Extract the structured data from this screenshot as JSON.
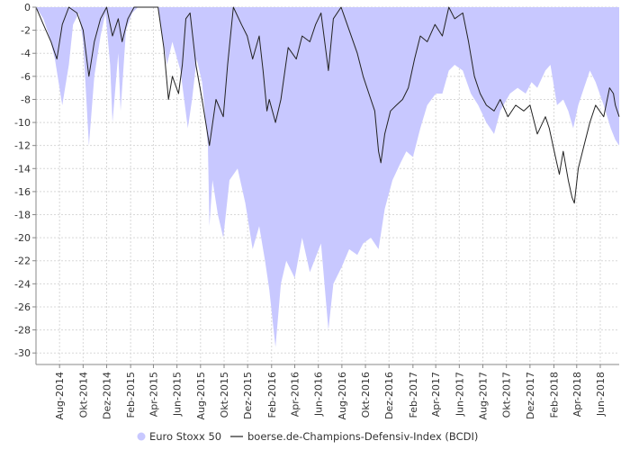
{
  "chart_data": {
    "type": "area",
    "title": "",
    "xlabel": "",
    "ylabel": "",
    "ylim": [
      -31,
      0
    ],
    "y_ticks": [
      0,
      -2,
      -4,
      -6,
      -8,
      -10,
      -12,
      -14,
      -16,
      -18,
      -20,
      -22,
      -24,
      -26,
      -28,
      -30
    ],
    "x_range": [
      "2014-06-01",
      "2018-07-20"
    ],
    "x_ticks": [
      {
        "date": "2014-08-01",
        "label": "Aug-2014"
      },
      {
        "date": "2014-10-01",
        "label": "Okt-2014"
      },
      {
        "date": "2014-12-01",
        "label": "Dez-2014"
      },
      {
        "date": "2015-02-01",
        "label": "Feb-2015"
      },
      {
        "date": "2015-04-01",
        "label": "Apr-2015"
      },
      {
        "date": "2015-06-01",
        "label": "Jun-2015"
      },
      {
        "date": "2015-08-01",
        "label": "Aug-2015"
      },
      {
        "date": "2015-10-01",
        "label": "Okt-2015"
      },
      {
        "date": "2015-12-01",
        "label": "Dez-2015"
      },
      {
        "date": "2016-02-01",
        "label": "Feb-2016"
      },
      {
        "date": "2016-04-01",
        "label": "Apr-2016"
      },
      {
        "date": "2016-06-01",
        "label": "Jun-2016"
      },
      {
        "date": "2016-08-01",
        "label": "Aug-2016"
      },
      {
        "date": "2016-10-01",
        "label": "Okt-2016"
      },
      {
        "date": "2016-12-01",
        "label": "Dez-2016"
      },
      {
        "date": "2017-02-01",
        "label": "Feb-2017"
      },
      {
        "date": "2017-04-01",
        "label": "Apr-2017"
      },
      {
        "date": "2017-06-01",
        "label": "Jun-2017"
      },
      {
        "date": "2017-08-01",
        "label": "Aug-2017"
      },
      {
        "date": "2017-10-01",
        "label": "Okt-2017"
      },
      {
        "date": "2017-12-01",
        "label": "Dez-2017"
      },
      {
        "date": "2018-02-01",
        "label": "Feb-2018"
      },
      {
        "date": "2018-04-01",
        "label": "Apr-2018"
      },
      {
        "date": "2018-06-01",
        "label": "Jun-2018"
      }
    ],
    "grid": true,
    "legend_placement": "bottom-center",
    "series": [
      {
        "name": "Euro Stoxx 50",
        "style": "area",
        "color": "#c8c8ff",
        "points": [
          [
            "2014-06-01",
            0
          ],
          [
            "2014-06-20",
            -1
          ],
          [
            "2014-07-05",
            -2.5
          ],
          [
            "2014-07-20",
            -4.5
          ],
          [
            "2014-08-08",
            -8.5
          ],
          [
            "2014-08-25",
            -5
          ],
          [
            "2014-09-05",
            -1.5
          ],
          [
            "2014-09-20",
            -0.5
          ],
          [
            "2014-10-01",
            -3
          ],
          [
            "2014-10-16",
            -12
          ],
          [
            "2014-10-30",
            -6
          ],
          [
            "2014-11-15",
            -2.5
          ],
          [
            "2014-11-28",
            -0.5
          ],
          [
            "2014-12-10",
            -5
          ],
          [
            "2014-12-16",
            -10
          ],
          [
            "2014-12-31",
            -4
          ],
          [
            "2015-01-06",
            -9
          ],
          [
            "2015-01-20",
            -2
          ],
          [
            "2015-02-05",
            -0.5
          ],
          [
            "2015-02-20",
            0
          ],
          [
            "2015-03-10",
            0
          ],
          [
            "2015-04-13",
            0
          ],
          [
            "2015-05-06",
            -5
          ],
          [
            "2015-05-20",
            -3
          ],
          [
            "2015-06-10",
            -5.5
          ],
          [
            "2015-06-29",
            -10.5
          ],
          [
            "2015-07-10",
            -8
          ],
          [
            "2015-07-22",
            -4.5
          ],
          [
            "2015-08-05",
            -6.5
          ],
          [
            "2015-08-20",
            -12
          ],
          [
            "2015-08-24",
            -19
          ],
          [
            "2015-09-01",
            -15
          ],
          [
            "2015-09-15",
            -18
          ],
          [
            "2015-09-29",
            -20
          ],
          [
            "2015-10-15",
            -15
          ],
          [
            "2015-11-05",
            -14
          ],
          [
            "2015-11-25",
            -17
          ],
          [
            "2015-12-14",
            -21
          ],
          [
            "2015-12-31",
            -19
          ],
          [
            "2016-01-15",
            -22
          ],
          [
            "2016-01-26",
            -24.5
          ],
          [
            "2016-02-11",
            -29.5
          ],
          [
            "2016-02-25",
            -24
          ],
          [
            "2016-03-10",
            -22
          ],
          [
            "2016-04-01",
            -23.5
          ],
          [
            "2016-04-20",
            -20
          ],
          [
            "2016-05-10",
            -23
          ],
          [
            "2016-06-08",
            -20.5
          ],
          [
            "2016-06-27",
            -28
          ],
          [
            "2016-07-10",
            -24
          ],
          [
            "2016-08-01",
            -22.5
          ],
          [
            "2016-08-20",
            -21
          ],
          [
            "2016-09-10",
            -21.5
          ],
          [
            "2016-09-25",
            -20.5
          ],
          [
            "2016-10-15",
            -20
          ],
          [
            "2016-11-04",
            -21
          ],
          [
            "2016-11-20",
            -17.5
          ],
          [
            "2016-12-10",
            -15
          ],
          [
            "2016-12-31",
            -13.5
          ],
          [
            "2017-01-15",
            -12.5
          ],
          [
            "2017-02-01",
            -13
          ],
          [
            "2017-02-20",
            -10.5
          ],
          [
            "2017-03-10",
            -8.5
          ],
          [
            "2017-04-01",
            -7.5
          ],
          [
            "2017-04-18",
            -7.5
          ],
          [
            "2017-05-05",
            -5.5
          ],
          [
            "2017-05-20",
            -5
          ],
          [
            "2017-06-10",
            -5.5
          ],
          [
            "2017-07-01",
            -7.5
          ],
          [
            "2017-07-20",
            -8.5
          ],
          [
            "2017-08-10",
            -10
          ],
          [
            "2017-08-30",
            -11
          ],
          [
            "2017-09-15",
            -9
          ],
          [
            "2017-10-10",
            -7.5
          ],
          [
            "2017-10-30",
            -7
          ],
          [
            "2017-11-20",
            -7.5
          ],
          [
            "2017-12-05",
            -6.5
          ],
          [
            "2017-12-20",
            -7
          ],
          [
            "2018-01-10",
            -5.5
          ],
          [
            "2018-01-23",
            -5
          ],
          [
            "2018-02-09",
            -8.5
          ],
          [
            "2018-02-25",
            -8
          ],
          [
            "2018-03-10",
            -9
          ],
          [
            "2018-03-23",
            -10.5
          ],
          [
            "2018-04-05",
            -8.5
          ],
          [
            "2018-04-20",
            -7
          ],
          [
            "2018-05-05",
            -5.5
          ],
          [
            "2018-05-20",
            -6.5
          ],
          [
            "2018-06-10",
            -8.5
          ],
          [
            "2018-06-28",
            -10.5
          ],
          [
            "2018-07-10",
            -11.5
          ],
          [
            "2018-07-20",
            -12
          ]
        ]
      },
      {
        "name": "boerse.de-Champions-Defensiv-Index (BCDI)",
        "style": "line",
        "color": "#222222",
        "points": [
          [
            "2014-06-01",
            0
          ],
          [
            "2014-06-20",
            -1.5
          ],
          [
            "2014-07-10",
            -3
          ],
          [
            "2014-07-25",
            -4.5
          ],
          [
            "2014-08-08",
            -1.5
          ],
          [
            "2014-08-25",
            0
          ],
          [
            "2014-09-15",
            -0.5
          ],
          [
            "2014-10-01",
            -2
          ],
          [
            "2014-10-16",
            -6
          ],
          [
            "2014-10-30",
            -3
          ],
          [
            "2014-11-15",
            -1
          ],
          [
            "2014-12-01",
            0
          ],
          [
            "2014-12-16",
            -2.5
          ],
          [
            "2014-12-31",
            -1
          ],
          [
            "2015-01-10",
            -3
          ],
          [
            "2015-01-25",
            -1
          ],
          [
            "2015-02-10",
            0
          ],
          [
            "2015-03-10",
            0
          ],
          [
            "2015-04-13",
            0
          ],
          [
            "2015-04-28",
            -3.5
          ],
          [
            "2015-05-10",
            -8
          ],
          [
            "2015-05-20",
            -6
          ],
          [
            "2015-06-05",
            -7.5
          ],
          [
            "2015-06-15",
            -5
          ],
          [
            "2015-06-24",
            -1
          ],
          [
            "2015-07-05",
            -0.5
          ],
          [
            "2015-07-20",
            -5
          ],
          [
            "2015-08-05",
            -8
          ],
          [
            "2015-08-24",
            -12
          ],
          [
            "2015-09-10",
            -8
          ],
          [
            "2015-09-29",
            -9.5
          ],
          [
            "2015-10-10",
            -5
          ],
          [
            "2015-10-25",
            0
          ],
          [
            "2015-11-15",
            -1.5
          ],
          [
            "2015-11-30",
            -2.5
          ],
          [
            "2015-12-14",
            -4.5
          ],
          [
            "2015-12-31",
            -2.5
          ],
          [
            "2016-01-10",
            -5.5
          ],
          [
            "2016-01-20",
            -9
          ],
          [
            "2016-01-26",
            -8
          ],
          [
            "2016-02-11",
            -10
          ],
          [
            "2016-02-25",
            -8
          ],
          [
            "2016-03-15",
            -3.5
          ],
          [
            "2016-04-05",
            -4.5
          ],
          [
            "2016-04-20",
            -2.5
          ],
          [
            "2016-05-10",
            -3
          ],
          [
            "2016-05-25",
            -1.5
          ],
          [
            "2016-06-08",
            -0.5
          ],
          [
            "2016-06-27",
            -5.5
          ],
          [
            "2016-07-10",
            -1
          ],
          [
            "2016-07-30",
            0
          ],
          [
            "2016-08-20",
            -2
          ],
          [
            "2016-09-10",
            -4
          ],
          [
            "2016-09-25",
            -6
          ],
          [
            "2016-10-10",
            -7.5
          ],
          [
            "2016-10-25",
            -9
          ],
          [
            "2016-11-04",
            -12.5
          ],
          [
            "2016-11-10",
            -13.5
          ],
          [
            "2016-11-20",
            -11
          ],
          [
            "2016-12-05",
            -9
          ],
          [
            "2016-12-20",
            -8.5
          ],
          [
            "2017-01-05",
            -8
          ],
          [
            "2017-01-20",
            -7
          ],
          [
            "2017-02-05",
            -4.5
          ],
          [
            "2017-02-20",
            -2.5
          ],
          [
            "2017-03-10",
            -3
          ],
          [
            "2017-03-30",
            -1.5
          ],
          [
            "2017-04-18",
            -2.5
          ],
          [
            "2017-05-05",
            0
          ],
          [
            "2017-05-20",
            -1
          ],
          [
            "2017-06-10",
            -0.5
          ],
          [
            "2017-06-25",
            -3
          ],
          [
            "2017-07-10",
            -6
          ],
          [
            "2017-07-25",
            -7.5
          ],
          [
            "2017-08-10",
            -8.5
          ],
          [
            "2017-08-30",
            -9
          ],
          [
            "2017-09-15",
            -8
          ],
          [
            "2017-10-05",
            -9.5
          ],
          [
            "2017-10-25",
            -8.5
          ],
          [
            "2017-11-15",
            -9
          ],
          [
            "2017-12-01",
            -8.5
          ],
          [
            "2017-12-20",
            -11
          ],
          [
            "2018-01-10",
            -9.5
          ],
          [
            "2018-01-20",
            -10.5
          ],
          [
            "2018-02-05",
            -13
          ],
          [
            "2018-02-15",
            -14.5
          ],
          [
            "2018-02-25",
            -12.5
          ],
          [
            "2018-03-10",
            -15
          ],
          [
            "2018-03-20",
            -16.5
          ],
          [
            "2018-03-26",
            -17
          ],
          [
            "2018-04-05",
            -14
          ],
          [
            "2018-04-20",
            -12
          ],
          [
            "2018-05-05",
            -10
          ],
          [
            "2018-05-20",
            -8.5
          ],
          [
            "2018-06-10",
            -9.5
          ],
          [
            "2018-06-25",
            -7
          ],
          [
            "2018-07-05",
            -7.5
          ],
          [
            "2018-07-10",
            -8.5
          ],
          [
            "2018-07-20",
            -9.5
          ]
        ]
      }
    ]
  }
}
